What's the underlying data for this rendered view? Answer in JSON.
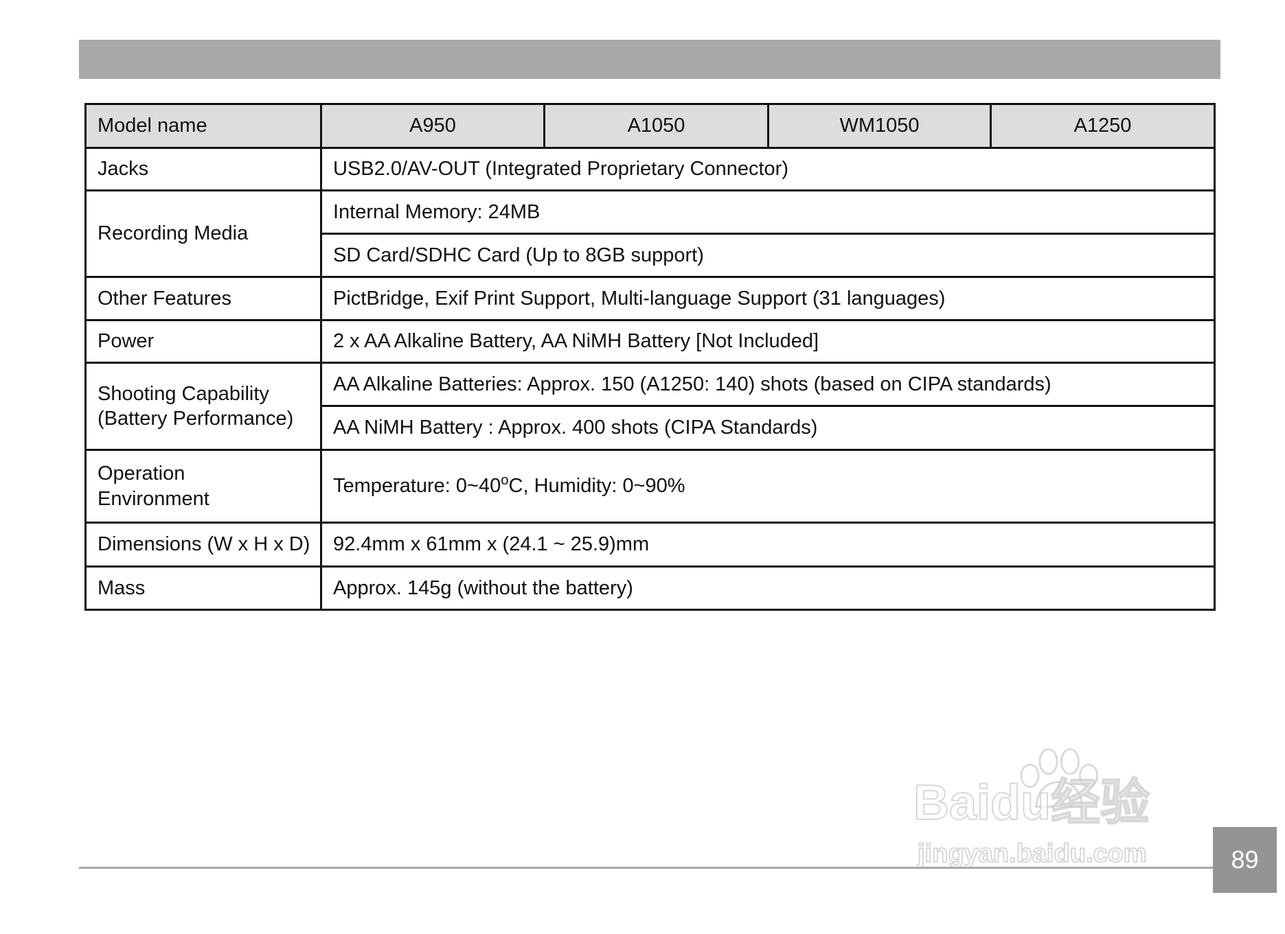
{
  "header_bar": {
    "color": "#a7a8aa"
  },
  "table": {
    "header": {
      "label": "Model name",
      "models": [
        "A950",
        "A1050",
        "WM1050",
        "A1250"
      ]
    },
    "rows": {
      "jacks": {
        "label": "Jacks",
        "value": "USB2.0/AV-OUT (Integrated Proprietary Connector)"
      },
      "recording_media": {
        "label": "Recording Media",
        "values": [
          "Internal Memory: 24MB",
          "SD Card/SDHC Card (Up to 8GB support)"
        ]
      },
      "other_features": {
        "label": "Other Features",
        "value": "PictBridge, Exif Print Support, Multi-language Support (31 languages)"
      },
      "power": {
        "label": "Power",
        "value": "2 x AA Alkaline Battery, AA NiMH Battery [Not Included]"
      },
      "shooting": {
        "label_line1": "Shooting Capability",
        "label_line2": "(Battery Performance)",
        "values": [
          "AA Alkaline Batteries: Approx. 150 (A1250: 140) shots (based on CIPA standards)",
          "AA NiMH Battery : Approx. 400 shots (CIPA Standards)"
        ]
      },
      "operation": {
        "label_line1": "Operation",
        "label_line2": "Environment",
        "value_prefix": "Temperature: 0~40",
        "value_sup": "o",
        "value_suffix": "C, Humidity: 0~90%"
      },
      "dimensions": {
        "label": "Dimensions (W x H x D)",
        "value": "92.4mm x 61mm x (24.1 ~ 25.9)mm"
      },
      "mass": {
        "label": "Mass",
        "value": "Approx. 145g (without the battery)"
      }
    },
    "header_bg": "#dcdddf"
  },
  "footer": {
    "page_number": "89",
    "page_box_color": "#949494"
  },
  "watermark": {
    "text": "Baidu经验",
    "url_text": "jingyan.baidu.com"
  }
}
